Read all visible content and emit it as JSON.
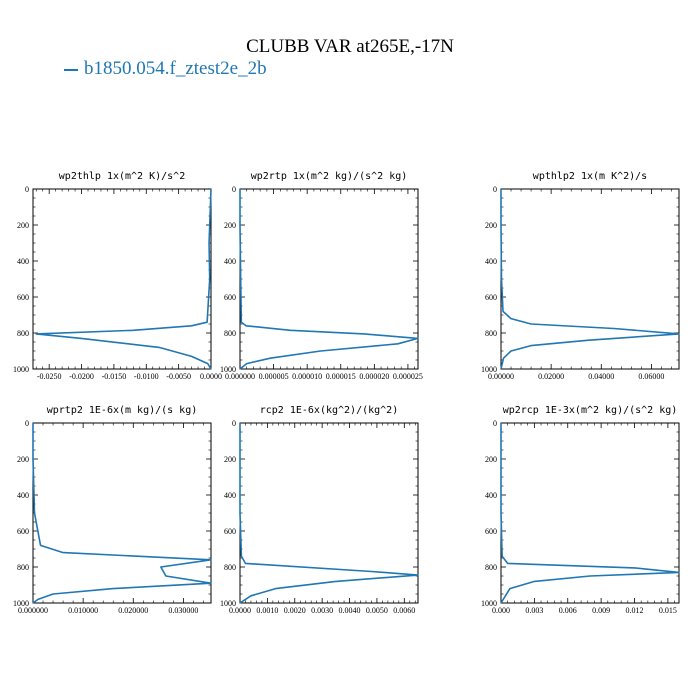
{
  "title": "CLUBB VAR at265E,-17N",
  "legend": [
    {
      "label": "b1850.054.f_ztest2e_2b",
      "color": "#1f77b4"
    }
  ],
  "chart_data": [
    {
      "type": "line",
      "title": "wp2thlp   1x(m^2 K)/s^2",
      "xlim": [
        -0.0275,
        0.0
      ],
      "ylim": [
        1000,
        0
      ],
      "xticks": [
        -0.025,
        -0.02,
        -0.015,
        -0.01,
        -0.005,
        0.0
      ],
      "xtick_labels": [
        "-0.0250",
        "-0.0200",
        "-0.0150",
        "-0.0100",
        "-0.0050",
        "0.0000"
      ],
      "yticks": [
        0,
        200,
        400,
        600,
        800,
        1000
      ],
      "ytick_labels": [
        "0",
        "200",
        "400",
        "600",
        "800",
        "1000"
      ],
      "series": [
        {
          "color": "#1f77b4",
          "x": [
            0.0,
            -0.0001,
            -0.0002,
            -0.0003,
            -0.0002,
            -0.0006,
            -0.003,
            -0.012,
            -0.027,
            -0.02,
            -0.008,
            -0.003,
            -0.0005,
            0.0
          ],
          "y": [
            0,
            100,
            200,
            300,
            500,
            740,
            760,
            785,
            805,
            830,
            880,
            930,
            970,
            1000
          ]
        }
      ]
    },
    {
      "type": "line",
      "title": "wp2rtp  1x(m^2 kg)/(s^2 kg)",
      "xlim": [
        0.0,
        2.65e-05
      ],
      "ylim": [
        1000,
        0
      ],
      "xticks": [
        0.0,
        5e-06,
        1e-05,
        1.5e-05,
        2e-05,
        2.5e-05
      ],
      "xtick_labels": [
        "0.000000",
        "0.000005",
        "0.000010",
        "0.000015",
        "0.000020",
        "0.000025"
      ],
      "yticks": [
        0,
        200,
        400,
        600,
        800,
        1000
      ],
      "ytick_labels": [
        "0",
        "200",
        "400",
        "600",
        "800",
        "1000"
      ],
      "series": [
        {
          "color": "#1f77b4",
          "x": [
            0.0,
            0.0,
            1e-07,
            2e-07,
            9e-07,
            7.5e-06,
            1.85e-05,
            2.65e-05,
            2.35e-05,
            1.2e-05,
            4.5e-06,
            1e-06,
            0.0
          ],
          "y": [
            0,
            200,
            500,
            740,
            760,
            785,
            805,
            830,
            860,
            900,
            940,
            970,
            1000
          ]
        }
      ]
    },
    {
      "type": "line",
      "title": "wpthlp2  1x(m K^2)/s",
      "xlim": [
        0.0,
        0.071
      ],
      "ylim": [
        1000,
        0
      ],
      "xticks": [
        0.0,
        0.02,
        0.04,
        0.06
      ],
      "xtick_labels": [
        "0.00000",
        "0.02000",
        "0.04000",
        "0.06000"
      ],
      "yticks": [
        0,
        200,
        400,
        600,
        800,
        1000
      ],
      "ytick_labels": [
        "0",
        "200",
        "400",
        "600",
        "800",
        "1000"
      ],
      "series": [
        {
          "color": "#1f77b4",
          "x": [
            0.0,
            0.0,
            0.0002,
            0.0008,
            0.004,
            0.012,
            0.045,
            0.071,
            0.035,
            0.012,
            0.004,
            0.001,
            0.0
          ],
          "y": [
            0,
            200,
            500,
            680,
            720,
            750,
            775,
            805,
            840,
            870,
            900,
            940,
            1000
          ]
        }
      ]
    },
    {
      "type": "line",
      "title": "wprtp2  1E-6x(m kg)/(s kg)",
      "xlim": [
        0.0,
        0.0355
      ],
      "ylim": [
        1000,
        0
      ],
      "xticks": [
        0.0,
        0.01,
        0.02,
        0.03
      ],
      "xtick_labels": [
        "0.000000",
        "0.010000",
        "0.020000",
        "0.030000"
      ],
      "yticks": [
        0,
        200,
        400,
        600,
        800,
        1000
      ],
      "ytick_labels": [
        "0",
        "200",
        "400",
        "600",
        "800",
        "1000"
      ],
      "series": [
        {
          "color": "#1f77b4",
          "x": [
            0.0,
            0.0,
            0.0003,
            0.0015,
            0.006,
            0.0355,
            0.0255,
            0.0265,
            0.0355,
            0.016,
            0.004,
            0.001,
            0.0
          ],
          "y": [
            0,
            200,
            500,
            680,
            720,
            760,
            800,
            850,
            890,
            920,
            950,
            980,
            1000
          ]
        }
      ]
    },
    {
      "type": "line",
      "title": "rcp2   1E-6x(kg^2)/(kg^2)",
      "xlim": [
        0.0,
        0.0065
      ],
      "ylim": [
        1000,
        0
      ],
      "xticks": [
        0.0,
        0.001,
        0.002,
        0.003,
        0.004,
        0.005,
        0.006
      ],
      "xtick_labels": [
        "0.0000",
        "0.0010",
        "0.0020",
        "0.0030",
        "0.0040",
        "0.0050",
        "0.0060"
      ],
      "yticks": [
        0,
        200,
        400,
        600,
        800,
        1000
      ],
      "ytick_labels": [
        "0",
        "200",
        "400",
        "600",
        "800",
        "1000"
      ],
      "series": [
        {
          "color": "#1f77b4",
          "x": [
            0.0,
            0.0,
            5e-05,
            0.0002,
            0.0048,
            0.0065,
            0.0035,
            0.0013,
            0.0004,
            0.0
          ],
          "y": [
            0,
            500,
            740,
            780,
            825,
            845,
            880,
            920,
            960,
            1000
          ]
        }
      ]
    },
    {
      "type": "line",
      "title": "wp2rcp  1E-3x(m^2 kg)/(s^2 kg)",
      "xlim": [
        0.0,
        0.016
      ],
      "ylim": [
        1000,
        0
      ],
      "xticks": [
        0.0,
        0.003,
        0.006,
        0.009,
        0.012,
        0.015
      ],
      "xtick_labels": [
        "0.000",
        "0.003",
        "0.006",
        "0.009",
        "0.012",
        "0.015"
      ],
      "yticks": [
        0,
        200,
        400,
        600,
        800,
        1000
      ],
      "ytick_labels": [
        "0",
        "200",
        "400",
        "600",
        "800",
        "1000"
      ],
      "series": [
        {
          "color": "#1f77b4",
          "x": [
            0.0,
            0.0,
            0.0001,
            0.0006,
            0.012,
            0.016,
            0.008,
            0.003,
            0.0008,
            0.0
          ],
          "y": [
            0,
            500,
            740,
            780,
            805,
            830,
            850,
            880,
            920,
            1000
          ]
        }
      ]
    }
  ]
}
